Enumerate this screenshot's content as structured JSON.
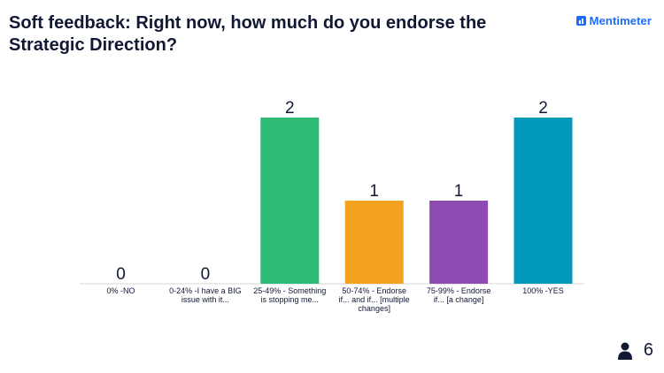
{
  "header": {
    "title": "Soft feedback: Right now, how much do you endorse the Strategic Direction?",
    "brand": "Mentimeter"
  },
  "footer": {
    "responses_icon": "person-icon",
    "responses_count": "6"
  },
  "chart_data": {
    "type": "bar",
    "categories": [
      "0% -NO",
      "0-24% -I have a BIG issue with it...",
      "25-49% - Something is stopping me...",
      "50-74% - Endorse if... and if... [multiple changes]",
      "75-99% - Endorse if... [a change]",
      "100% -YES"
    ],
    "values": [
      0,
      0,
      2,
      1,
      1,
      2
    ],
    "value_labels": [
      "0",
      "0",
      "2",
      "1",
      "1",
      "2"
    ],
    "colors": [
      "#cccccc",
      "#cccccc",
      "#2dbb74",
      "#f3a121",
      "#8e4bb2",
      "#0399bb"
    ],
    "ylim": [
      0,
      2
    ],
    "grid": false,
    "legend": "none"
  }
}
